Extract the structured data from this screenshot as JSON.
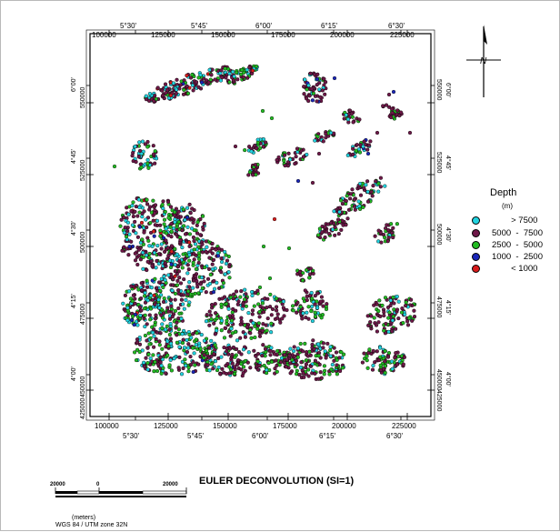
{
  "map": {
    "top_easting_labels": [
      "100000",
      "125000",
      "150000",
      "175000",
      "200000",
      "225000"
    ],
    "top_lon_labels": [
      "5°30'",
      "5°45'",
      "6°00'",
      "6°15'",
      "6°30'"
    ],
    "bottom_easting_labels": [
      "100000",
      "125000",
      "150000",
      "175000",
      "200000",
      "225000"
    ],
    "bottom_lon_labels": [
      "5°30'",
      "5°45'",
      "6°00'",
      "6°15'",
      "6°30'"
    ],
    "left_northing_labels": [
      "550000",
      "525000",
      "500000",
      "475000",
      "450000",
      "425000"
    ],
    "left_lat_labels": [
      "6°00'",
      "4°45'",
      "4°30'",
      "4°15'",
      "4°00'"
    ],
    "right_northing_labels": [
      "550000",
      "525000",
      "500000",
      "475000",
      "450000",
      "425000"
    ],
    "right_lat_labels": [
      "6°00'",
      "4°45'",
      "4°30'",
      "4°15'",
      "4°00'"
    ]
  },
  "north_arrow": {
    "label": "N"
  },
  "legend": {
    "title": "Depth",
    "unit": "(m)",
    "items": [
      {
        "label": "        > 7500",
        "color": "#22d3e0"
      },
      {
        "label": "5000  -  7500",
        "color": "#6e1848"
      },
      {
        "label": "2500  -  5000",
        "color": "#22bb22"
      },
      {
        "label": "1000  -  2500",
        "color": "#1a26b8"
      },
      {
        "label": "        < 1000",
        "color": "#d81c1c"
      }
    ]
  },
  "title": "EULER DECONVOLUTION (SI=1)",
  "scalebar": {
    "left_label": "20000",
    "mid_label": "0",
    "right_label": "20000",
    "units": "(meters)",
    "projection": "WGS 84 / UTM zone 32N"
  },
  "colors": {
    "cyan": "#22d3e0",
    "maroon": "#6e1848",
    "green": "#22bb22",
    "blue": "#1a26b8",
    "red": "#d81c1c"
  }
}
